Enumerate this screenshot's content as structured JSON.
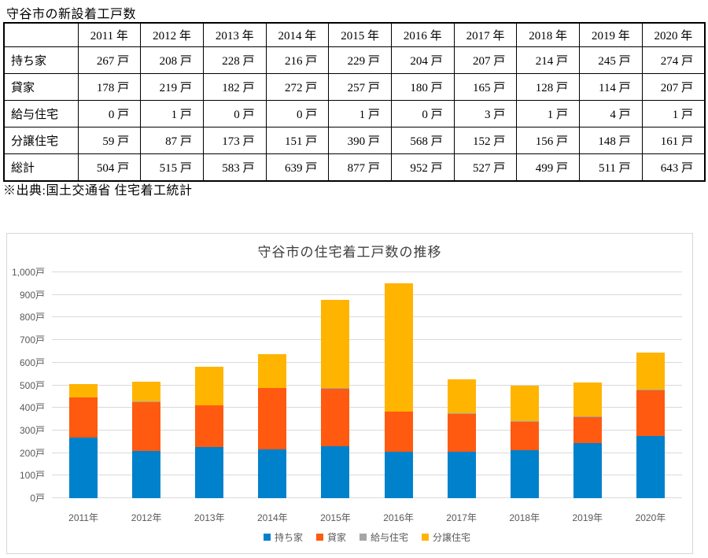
{
  "page": {
    "title": "守谷市の新設着工戸数",
    "source_note": "※出典:国土交通省 住宅着工統計"
  },
  "table": {
    "corner_label": "",
    "unit": "戸",
    "col_headers": [
      "2011 年",
      "2012 年",
      "2013 年",
      "2014 年",
      "2015 年",
      "2016 年",
      "2017 年",
      "2018 年",
      "2019 年",
      "2020 年"
    ],
    "rows": [
      {
        "label": "持ち家",
        "values": [
          267,
          208,
          228,
          216,
          229,
          204,
          207,
          214,
          245,
          274
        ]
      },
      {
        "label": "貸家",
        "values": [
          178,
          219,
          182,
          272,
          257,
          180,
          165,
          128,
          114,
          207
        ]
      },
      {
        "label": "給与住宅",
        "values": [
          0,
          1,
          0,
          0,
          1,
          0,
          3,
          1,
          4,
          1
        ]
      },
      {
        "label": "分譲住宅",
        "values": [
          59,
          87,
          173,
          151,
          390,
          568,
          152,
          156,
          148,
          161
        ]
      },
      {
        "label": "総計",
        "values": [
          504,
          515,
          583,
          639,
          877,
          952,
          527,
          499,
          511,
          643
        ]
      }
    ]
  },
  "chart_data": {
    "type": "bar",
    "stacked": true,
    "title": "守谷市の住宅着工戸数の推移",
    "categories": [
      "2011年",
      "2012年",
      "2013年",
      "2014年",
      "2015年",
      "2016年",
      "2017年",
      "2018年",
      "2019年",
      "2020年"
    ],
    "series": [
      {
        "name": "持ち家",
        "color": "#0081CC",
        "values": [
          267,
          208,
          228,
          216,
          229,
          204,
          207,
          214,
          245,
          274
        ]
      },
      {
        "name": "貸家",
        "color": "#FF5A0F",
        "values": [
          178,
          219,
          182,
          272,
          257,
          180,
          165,
          128,
          114,
          207
        ]
      },
      {
        "name": "給与住宅",
        "color": "#A5A5A5",
        "values": [
          0,
          1,
          0,
          0,
          1,
          0,
          3,
          1,
          4,
          1
        ]
      },
      {
        "name": "分譲住宅",
        "color": "#FFB400",
        "values": [
          59,
          87,
          173,
          151,
          390,
          568,
          152,
          156,
          148,
          161
        ]
      }
    ],
    "ylim": [
      0,
      1000
    ],
    "ytick_step": 100,
    "yticks": [
      "0戸",
      "100戸",
      "200戸",
      "300戸",
      "400戸",
      "500戸",
      "600戸",
      "700戸",
      "800戸",
      "900戸",
      "1,000戸"
    ],
    "grid": true,
    "legend_position": "bottom",
    "colors": {
      "grid": "#D9D9D9",
      "axis_text": "#595959",
      "title_text": "#404040"
    }
  }
}
